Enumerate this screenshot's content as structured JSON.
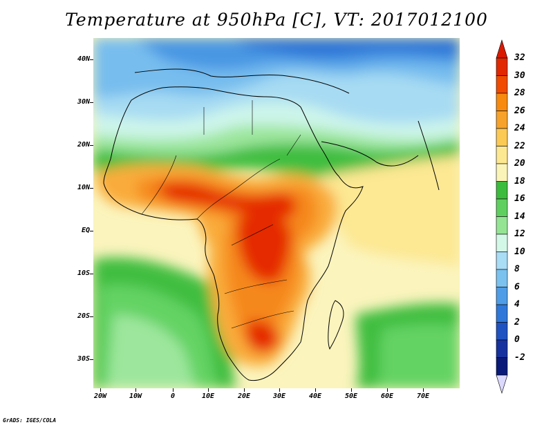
{
  "title": "Temperature at 950hPa [C], VT: 2017012100",
  "footer": "GrADS: IGES/COLA",
  "map": {
    "region": "Africa",
    "variable": "Temperature",
    "level": "950hPa",
    "units": "C",
    "valid_time": "2017012100"
  },
  "lat_labels": [
    "40N",
    "30N",
    "20N",
    "10N",
    "EQ",
    "10S",
    "20S",
    "30S"
  ],
  "lon_labels": [
    "20W",
    "10W",
    "0",
    "10E",
    "20E",
    "30E",
    "40E",
    "50E",
    "60E",
    "70E"
  ],
  "colorbar": {
    "labels": [
      "32",
      "30",
      "28",
      "26",
      "24",
      "22",
      "20",
      "18",
      "16",
      "14",
      "12",
      "10",
      "8",
      "6",
      "4",
      "2",
      "0",
      "-2"
    ],
    "colors": [
      "#e12800",
      "#f04b00",
      "#f78a0f",
      "#f7a22a",
      "#fbca55",
      "#fde892",
      "#fbf4b8",
      "#3cbc3c",
      "#5fd05f",
      "#94e494",
      "#d4f8e8",
      "#a9dcf5",
      "#7cc2ef",
      "#4f9de6",
      "#2f78da",
      "#1f53c2",
      "#16329e",
      "#0a1a78"
    ],
    "top_arrow_color": "#d91a00",
    "bottom_arrow_color": "#dcd9ff"
  },
  "palette": {
    "hot": "#e52c00",
    "warm": "#f5881a",
    "orange": "#f9ac3a",
    "yellow": "#fde893",
    "pale_yellow": "#fbf4bd",
    "green": "#3fbe41",
    "light_green": "#63d363",
    "pale_green": "#9de69d",
    "cyan": "#cdf5ea",
    "light_blue": "#a7dbf3",
    "blue": "#77bdee",
    "mid_blue": "#4a97e3",
    "dark_blue": "#2c72d6",
    "navy": "#1c4fbe",
    "lavender": "#dcd9ff"
  }
}
